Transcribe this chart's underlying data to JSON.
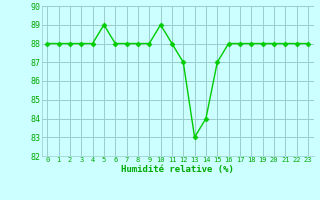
{
  "x": [
    0,
    1,
    2,
    3,
    4,
    5,
    6,
    7,
    8,
    9,
    10,
    11,
    12,
    13,
    14,
    15,
    16,
    17,
    18,
    19,
    20,
    21,
    22,
    23
  ],
  "y": [
    88,
    88,
    88,
    88,
    88,
    89,
    88,
    88,
    88,
    88,
    89,
    88,
    87,
    83,
    84,
    87,
    88,
    88,
    88,
    88,
    88,
    88,
    88,
    88
  ],
  "line_color": "#00cc00",
  "marker": "D",
  "marker_size": 2.5,
  "background_color": "#ccffff",
  "grid_color": "#99cccc",
  "text_color": "#00aa00",
  "xlabel": "Humidité relative (%)",
  "ylim": [
    82,
    90
  ],
  "yticks": [
    82,
    83,
    84,
    85,
    86,
    87,
    88,
    89,
    90
  ],
  "xticks": [
    0,
    1,
    2,
    3,
    4,
    5,
    6,
    7,
    8,
    9,
    10,
    11,
    12,
    13,
    14,
    15,
    16,
    17,
    18,
    19,
    20,
    21,
    22,
    23
  ],
  "xlim": [
    -0.5,
    23.5
  ]
}
